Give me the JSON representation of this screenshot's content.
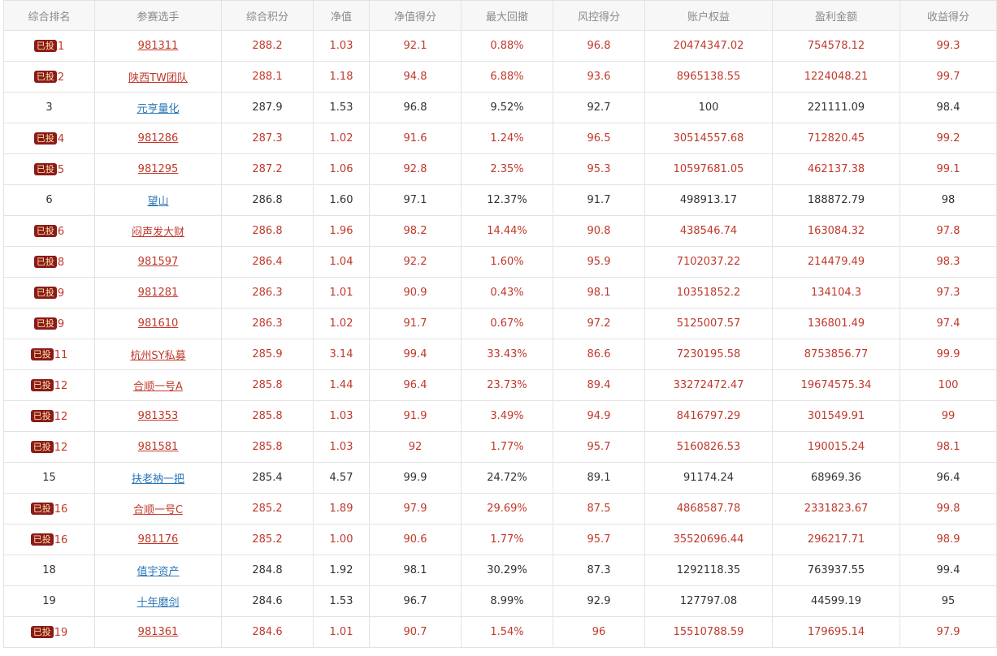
{
  "table": {
    "columns": [
      "综合排名",
      "参赛选手",
      "综合积分",
      "净值",
      "净值得分",
      "最大回撤",
      "风控得分",
      "账户权益",
      "盈利金额",
      "收益得分"
    ],
    "invest_badge": "已投",
    "rows": [
      {
        "invested": true,
        "rank": "1",
        "player": "981311",
        "score": "288.2",
        "nav": "1.03",
        "nav_score": "92.1",
        "max_dd": "0.88%",
        "risk_score": "96.8",
        "equity": "20474347.02",
        "profit": "754578.12",
        "return_score": "99.3"
      },
      {
        "invested": true,
        "rank": "2",
        "player": "陕西TW团队",
        "score": "288.1",
        "nav": "1.18",
        "nav_score": "94.8",
        "max_dd": "6.88%",
        "risk_score": "93.6",
        "equity": "8965138.55",
        "profit": "1224048.21",
        "return_score": "99.7"
      },
      {
        "invested": false,
        "rank": "3",
        "player": "元亨量化",
        "score": "287.9",
        "nav": "1.53",
        "nav_score": "96.8",
        "max_dd": "9.52%",
        "risk_score": "92.7",
        "equity": "100",
        "profit": "221111.09",
        "return_score": "98.4"
      },
      {
        "invested": true,
        "rank": "4",
        "player": "981286",
        "score": "287.3",
        "nav": "1.02",
        "nav_score": "91.6",
        "max_dd": "1.24%",
        "risk_score": "96.5",
        "equity": "30514557.68",
        "profit": "712820.45",
        "return_score": "99.2"
      },
      {
        "invested": true,
        "rank": "5",
        "player": "981295",
        "score": "287.2",
        "nav": "1.06",
        "nav_score": "92.8",
        "max_dd": "2.35%",
        "risk_score": "95.3",
        "equity": "10597681.05",
        "profit": "462137.38",
        "return_score": "99.1"
      },
      {
        "invested": false,
        "rank": "6",
        "player": "望山",
        "score": "286.8",
        "nav": "1.60",
        "nav_score": "97.1",
        "max_dd": "12.37%",
        "risk_score": "91.7",
        "equity": "498913.17",
        "profit": "188872.79",
        "return_score": "98"
      },
      {
        "invested": true,
        "rank": "6",
        "player": "闷声发大财",
        "score": "286.8",
        "nav": "1.96",
        "nav_score": "98.2",
        "max_dd": "14.44%",
        "risk_score": "90.8",
        "equity": "438546.74",
        "profit": "163084.32",
        "return_score": "97.8"
      },
      {
        "invested": true,
        "rank": "8",
        "player": "981597",
        "score": "286.4",
        "nav": "1.04",
        "nav_score": "92.2",
        "max_dd": "1.60%",
        "risk_score": "95.9",
        "equity": "7102037.22",
        "profit": "214479.49",
        "return_score": "98.3"
      },
      {
        "invested": true,
        "rank": "9",
        "player": "981281",
        "score": "286.3",
        "nav": "1.01",
        "nav_score": "90.9",
        "max_dd": "0.43%",
        "risk_score": "98.1",
        "equity": "10351852.2",
        "profit": "134104.3",
        "return_score": "97.3"
      },
      {
        "invested": true,
        "rank": "9",
        "player": "981610",
        "score": "286.3",
        "nav": "1.02",
        "nav_score": "91.7",
        "max_dd": "0.67%",
        "risk_score": "97.2",
        "equity": "5125007.57",
        "profit": "136801.49",
        "return_score": "97.4"
      },
      {
        "invested": true,
        "rank": "11",
        "player": "杭州SY私募",
        "score": "285.9",
        "nav": "3.14",
        "nav_score": "99.4",
        "max_dd": "33.43%",
        "risk_score": "86.6",
        "equity": "7230195.58",
        "profit": "8753856.77",
        "return_score": "99.9"
      },
      {
        "invested": true,
        "rank": "12",
        "player": "合顺一号A",
        "score": "285.8",
        "nav": "1.44",
        "nav_score": "96.4",
        "max_dd": "23.73%",
        "risk_score": "89.4",
        "equity": "33272472.47",
        "profit": "19674575.34",
        "return_score": "100"
      },
      {
        "invested": true,
        "rank": "12",
        "player": "981353",
        "score": "285.8",
        "nav": "1.03",
        "nav_score": "91.9",
        "max_dd": "3.49%",
        "risk_score": "94.9",
        "equity": "8416797.29",
        "profit": "301549.91",
        "return_score": "99"
      },
      {
        "invested": true,
        "rank": "12",
        "player": "981581",
        "score": "285.8",
        "nav": "1.03",
        "nav_score": "92",
        "max_dd": "1.77%",
        "risk_score": "95.7",
        "equity": "5160826.53",
        "profit": "190015.24",
        "return_score": "98.1"
      },
      {
        "invested": false,
        "rank": "15",
        "player": "扶老衲一把",
        "score": "285.4",
        "nav": "4.57",
        "nav_score": "99.9",
        "max_dd": "24.72%",
        "risk_score": "89.1",
        "equity": "91174.24",
        "profit": "68969.36",
        "return_score": "96.4"
      },
      {
        "invested": true,
        "rank": "16",
        "player": "合顺一号C",
        "score": "285.2",
        "nav": "1.89",
        "nav_score": "97.9",
        "max_dd": "29.69%",
        "risk_score": "87.5",
        "equity": "4868587.78",
        "profit": "2331823.67",
        "return_score": "99.8"
      },
      {
        "invested": true,
        "rank": "16",
        "player": "981176",
        "score": "285.2",
        "nav": "1.00",
        "nav_score": "90.6",
        "max_dd": "1.77%",
        "risk_score": "95.7",
        "equity": "35520696.44",
        "profit": "296217.71",
        "return_score": "98.9"
      },
      {
        "invested": false,
        "rank": "18",
        "player": "值宇资产",
        "score": "284.8",
        "nav": "1.92",
        "nav_score": "98.1",
        "max_dd": "30.29%",
        "risk_score": "87.3",
        "equity": "1292118.35",
        "profit": "763937.55",
        "return_score": "99.4"
      },
      {
        "invested": false,
        "rank": "19",
        "player": "十年磨剑",
        "score": "284.6",
        "nav": "1.53",
        "nav_score": "96.7",
        "max_dd": "8.99%",
        "risk_score": "92.9",
        "equity": "127797.08",
        "profit": "44599.19",
        "return_score": "95"
      },
      {
        "invested": true,
        "rank": "19",
        "player": "981361",
        "score": "284.6",
        "nav": "1.01",
        "nav_score": "90.7",
        "max_dd": "1.54%",
        "risk_score": "96",
        "equity": "15510788.59",
        "profit": "179695.14",
        "return_score": "97.9"
      }
    ]
  }
}
